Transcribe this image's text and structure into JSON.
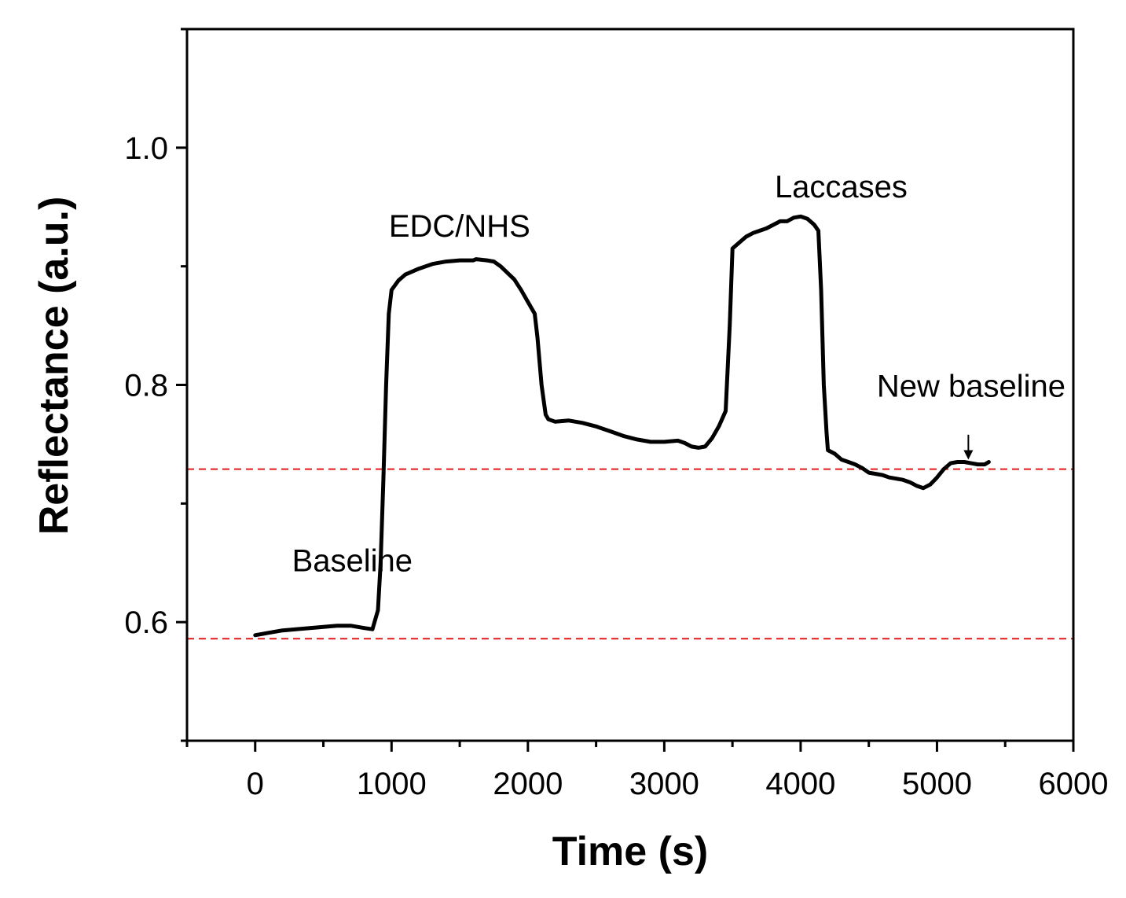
{
  "chart_data": {
    "type": "line",
    "title": "",
    "xlabel": "Time (s)",
    "ylabel": "Reflectance (a.u.)",
    "xlim": [
      -500,
      6000
    ],
    "ylim": [
      0.5,
      1.1
    ],
    "x_major_ticks": [
      0,
      1000,
      2000,
      3000,
      4000,
      5000,
      6000
    ],
    "x_tick_labels": [
      "0",
      "1000",
      "2000",
      "3000",
      "4000",
      "5000",
      "6000"
    ],
    "y_major_ticks": [
      0.6,
      0.8,
      1.0
    ],
    "y_tick_labels": [
      "0.6",
      "0.8",
      "1.0"
    ],
    "y_minor_ticks": [
      0.5,
      0.7,
      0.9,
      1.1
    ],
    "grid": false,
    "series": [
      {
        "name": "Reflectance",
        "color": "#000000",
        "x": [
          0,
          100,
          200,
          300,
          400,
          500,
          600,
          700,
          800,
          860,
          900,
          920,
          940,
          960,
          980,
          1000,
          1050,
          1100,
          1200,
          1300,
          1400,
          1500,
          1600,
          1620,
          1700,
          1750,
          1800,
          1900,
          1950,
          2000,
          2050,
          2070,
          2100,
          2130,
          2150,
          2200,
          2300,
          2400,
          2500,
          2600,
          2700,
          2800,
          2900,
          3000,
          3100,
          3150,
          3200,
          3250,
          3300,
          3350,
          3400,
          3450,
          3480,
          3500,
          3550,
          3600,
          3650,
          3700,
          3750,
          3800,
          3850,
          3900,
          3950,
          4000,
          4050,
          4100,
          4130,
          4150,
          4170,
          4190,
          4200,
          4250,
          4300,
          4350,
          4400,
          4450,
          4500,
          4550,
          4600,
          4650,
          4700,
          4750,
          4800,
          4850,
          4900,
          4950,
          5000,
          5050,
          5100,
          5150,
          5200,
          5250,
          5300,
          5350,
          5380
        ],
        "y": [
          0.589,
          0.591,
          0.593,
          0.594,
          0.595,
          0.596,
          0.597,
          0.597,
          0.595,
          0.594,
          0.61,
          0.65,
          0.72,
          0.8,
          0.86,
          0.88,
          0.888,
          0.893,
          0.898,
          0.902,
          0.904,
          0.905,
          0.905,
          0.906,
          0.905,
          0.904,
          0.9,
          0.889,
          0.88,
          0.87,
          0.86,
          0.84,
          0.8,
          0.775,
          0.771,
          0.769,
          0.77,
          0.768,
          0.765,
          0.761,
          0.757,
          0.754,
          0.752,
          0.752,
          0.753,
          0.751,
          0.748,
          0.747,
          0.748,
          0.755,
          0.765,
          0.778,
          0.85,
          0.915,
          0.92,
          0.925,
          0.928,
          0.93,
          0.932,
          0.935,
          0.938,
          0.938,
          0.941,
          0.942,
          0.94,
          0.935,
          0.93,
          0.88,
          0.8,
          0.76,
          0.745,
          0.742,
          0.737,
          0.735,
          0.733,
          0.73,
          0.726,
          0.725,
          0.724,
          0.722,
          0.721,
          0.72,
          0.718,
          0.715,
          0.713,
          0.716,
          0.722,
          0.729,
          0.734,
          0.735,
          0.735,
          0.734,
          0.733,
          0.733,
          0.735
        ]
      }
    ],
    "reference_lines": [
      {
        "y": 0.586,
        "color": "#e41a1c",
        "style": "dashed"
      },
      {
        "y": 0.729,
        "color": "#e41a1c",
        "style": "dashed"
      }
    ],
    "annotations": [
      {
        "text": "Baseline",
        "x": 270,
        "y": 0.643
      },
      {
        "text": "EDC/NHS",
        "x": 980,
        "y": 0.925
      },
      {
        "text": "Laccases",
        "x": 3810,
        "y": 0.958
      },
      {
        "text": "New baseline",
        "x": 5210,
        "y": 0.79
      }
    ],
    "arrow": {
      "from_x": 5230,
      "from_y": 0.758,
      "to_x": 5230,
      "to_y": 0.737
    }
  }
}
